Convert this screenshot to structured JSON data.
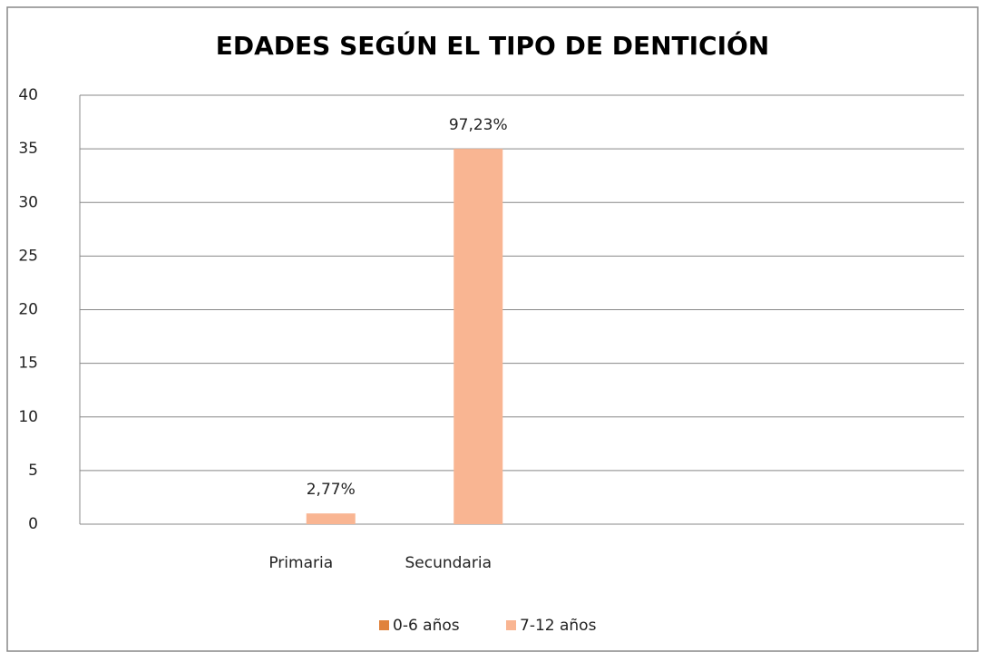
{
  "chart_data": {
    "type": "bar",
    "title": "EDADES SEGÚN EL TIPO DE DENTICIÓN",
    "categories": [
      null,
      "Primaria",
      "Secundaria",
      null,
      null,
      null
    ],
    "series": [
      {
        "name": "0-6 años",
        "color": "#e0823c",
        "values": [
          null,
          0,
          0,
          null,
          null,
          null
        ]
      },
      {
        "name": "7-12 años",
        "color": "#f9b592",
        "values": [
          null,
          1,
          35,
          null,
          null,
          null
        ],
        "percent_labels": [
          null,
          "2,77%",
          "97,23%",
          null,
          null,
          null
        ]
      }
    ],
    "ylim": [
      0,
      40
    ],
    "yticks": [
      0,
      5,
      10,
      15,
      20,
      25,
      30,
      35,
      40
    ],
    "grid": true,
    "legend": "bottom"
  }
}
